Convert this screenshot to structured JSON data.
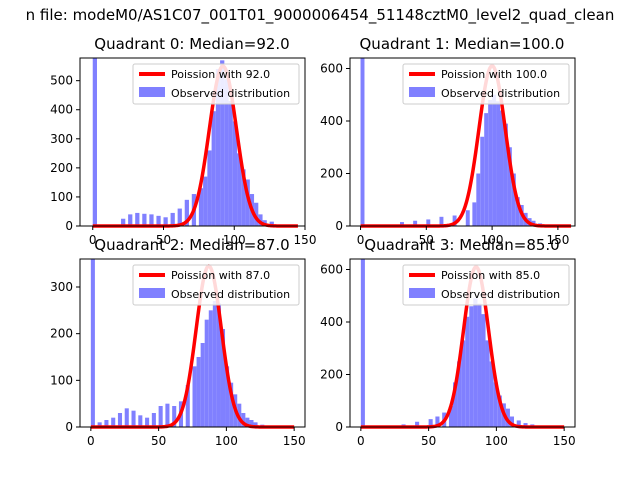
{
  "suptitle": "n file: modeM0/AS1C07_001T01_9000006454_51148cztM0_level2_quad_clean",
  "colors": {
    "hist": "#8080ff",
    "fit": "#ff0000",
    "frame": "#000000"
  },
  "chart_data": [
    {
      "type": "bar",
      "title": "Quadrant 0: Median=92.0",
      "legend_position": "top-right",
      "legend": [
        "Poission with 92.0",
        "Observed distribution"
      ],
      "xlim": [
        -9,
        150
      ],
      "ylim": [
        0,
        578
      ],
      "xticks": [
        0,
        50,
        100,
        150
      ],
      "yticks": [
        0,
        100,
        200,
        300,
        400,
        500
      ],
      "hist": {
        "x": [
          0,
          20,
          25,
          30,
          35,
          40,
          45,
          50,
          55,
          60,
          65,
          70,
          75,
          78,
          81,
          84,
          87,
          90,
          93,
          96,
          99,
          102,
          105,
          108,
          111,
          114,
          117,
          120,
          125,
          130
        ],
        "width": 3,
        "values": [
          578,
          25,
          40,
          45,
          42,
          40,
          35,
          30,
          45,
          60,
          90,
          110,
          130,
          170,
          260,
          395,
          540,
          570,
          505,
          430,
          360,
          250,
          195,
          160,
          110,
          80,
          40,
          20,
          15,
          5
        ]
      },
      "fit": {
        "mean": 92,
        "peak": 550,
        "x_from": 0,
        "x_to": 145
      }
    },
    {
      "type": "bar",
      "title": "Quadrant 1: Median=100.0",
      "legend_position": "top-right",
      "legend": [
        "Poission with 100.0",
        "Observed distribution"
      ],
      "xlim": [
        -8,
        163
      ],
      "ylim": [
        0,
        640
      ],
      "xticks": [
        0,
        50,
        100,
        150
      ],
      "yticks": [
        0,
        200,
        400,
        600
      ],
      "hist": {
        "x": [
          0,
          30,
          40,
          50,
          60,
          70,
          80,
          85,
          88,
          91,
          94,
          97,
          100,
          103,
          106,
          109,
          112,
          115,
          118,
          121,
          124,
          127,
          130,
          135,
          140
        ],
        "width": 3,
        "values": [
          640,
          15,
          20,
          25,
          35,
          40,
          60,
          90,
          200,
          340,
          430,
          480,
          500,
          475,
          440,
          390,
          300,
          200,
          110,
          80,
          50,
          30,
          20,
          10,
          5
        ]
      },
      "fit": {
        "mean": 100,
        "peak": 610,
        "x_from": 0,
        "x_to": 160
      }
    },
    {
      "type": "bar",
      "title": "Quadrant 2: Median=87.0",
      "legend_position": "top-right",
      "legend": [
        "Poission with 87.0",
        "Observed distribution"
      ],
      "xlim": [
        -8,
        158
      ],
      "ylim": [
        0,
        360
      ],
      "xticks": [
        0,
        50,
        100,
        150
      ],
      "yticks": [
        0,
        100,
        200,
        300
      ],
      "hist": {
        "x": [
          0,
          5,
          10,
          15,
          20,
          25,
          30,
          35,
          40,
          45,
          50,
          55,
          60,
          65,
          70,
          75,
          78,
          81,
          84,
          87,
          90,
          93,
          96,
          99,
          102,
          105,
          108,
          111,
          114,
          117,
          120,
          125,
          130
        ],
        "width": 3,
        "values": [
          360,
          10,
          15,
          20,
          30,
          40,
          35,
          25,
          20,
          30,
          45,
          50,
          45,
          55,
          90,
          130,
          150,
          180,
          230,
          250,
          270,
          265,
          210,
          130,
          95,
          70,
          50,
          30,
          20,
          15,
          10,
          5,
          3
        ]
      },
      "fit": {
        "mean": 87,
        "peak": 345,
        "x_from": 0,
        "x_to": 150
      }
    },
    {
      "type": "bar",
      "title": "Quadrant 3: Median=85.0",
      "legend_position": "top-right",
      "legend": [
        "Poission with 85.0",
        "Observed distribution"
      ],
      "xlim": [
        -8,
        158
      ],
      "ylim": [
        0,
        640
      ],
      "xticks": [
        0,
        50,
        100,
        150
      ],
      "yticks": [
        0,
        200,
        400,
        600
      ],
      "hist": {
        "x": [
          0,
          30,
          40,
          50,
          55,
          60,
          65,
          68,
          71,
          74,
          77,
          80,
          83,
          86,
          89,
          92,
          95,
          98,
          101,
          104,
          107,
          110,
          115,
          120,
          125,
          130
        ],
        "width": 3,
        "values": [
          640,
          10,
          20,
          30,
          40,
          55,
          80,
          170,
          250,
          330,
          420,
          460,
          490,
          470,
          430,
          330,
          250,
          170,
          120,
          90,
          70,
          40,
          25,
          15,
          10,
          5
        ]
      },
      "fit": {
        "mean": 85,
        "peak": 610,
        "x_from": 0,
        "x_to": 150
      }
    }
  ]
}
